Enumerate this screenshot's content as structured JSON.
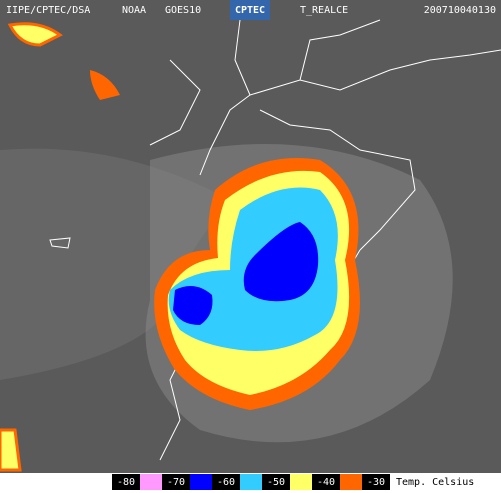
{
  "header": {
    "source": "IIPE/CPTEC/DSA",
    "agency": "NOAA",
    "satellite": "GOES10",
    "logo": "CPTEC",
    "product": "T_REALCE",
    "timestamp": "200710040130"
  },
  "legend": {
    "items": [
      {
        "label": "-80",
        "color": "#ff99ff"
      },
      {
        "label": "-70",
        "color": "#0000ff"
      },
      {
        "label": "-60",
        "color": "#33ccff"
      },
      {
        "label": "-50",
        "color": "#ffff66"
      },
      {
        "label": "-40",
        "color": "#ff6600"
      },
      {
        "label": "-30",
        "color": null
      }
    ],
    "unit": "Temp. Celsius"
  }
}
